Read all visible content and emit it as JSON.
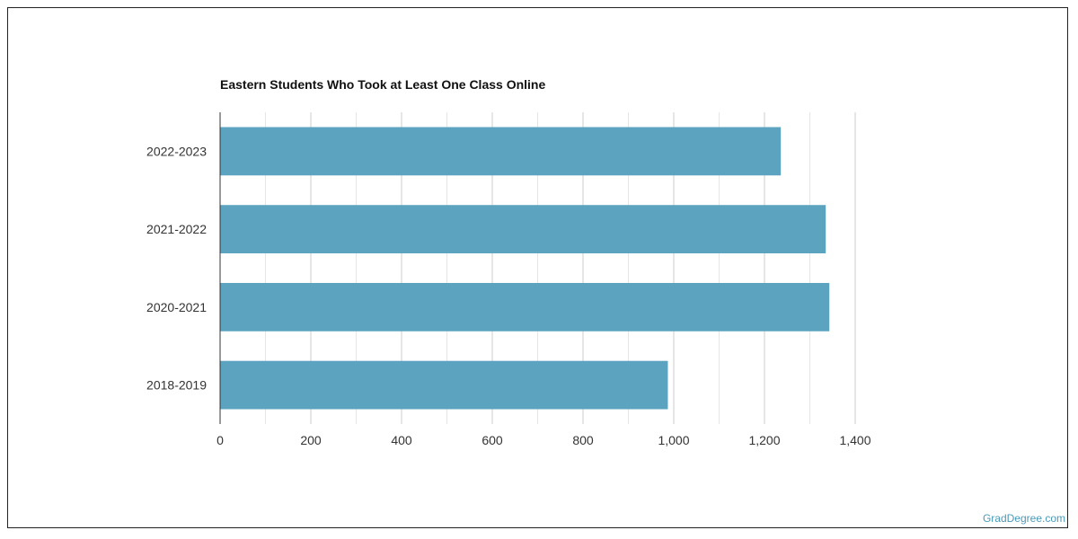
{
  "chart_data": {
    "type": "bar",
    "orientation": "horizontal",
    "title": "Eastern Students Who Took at Least One Class Online",
    "xlabel": "",
    "ylabel": "",
    "categories": [
      "2022-2023",
      "2021-2022",
      "2020-2021",
      "2018-2019"
    ],
    "values": [
      1236,
      1335,
      1343,
      987
    ],
    "xlim": [
      0,
      1400
    ],
    "xticks": [
      0,
      200,
      400,
      600,
      800,
      1000,
      1200,
      1400
    ],
    "xtick_labels": [
      "0",
      "200",
      "400",
      "600",
      "800",
      "1,000",
      "1,200",
      "1,400"
    ],
    "grid": true,
    "legend": "none",
    "bar_color": "#5ba3be",
    "grid_color": "#dddddd",
    "axis_color": "#333333"
  },
  "watermark": {
    "text": "GradDegree.com",
    "color": "#4a9ab8"
  }
}
